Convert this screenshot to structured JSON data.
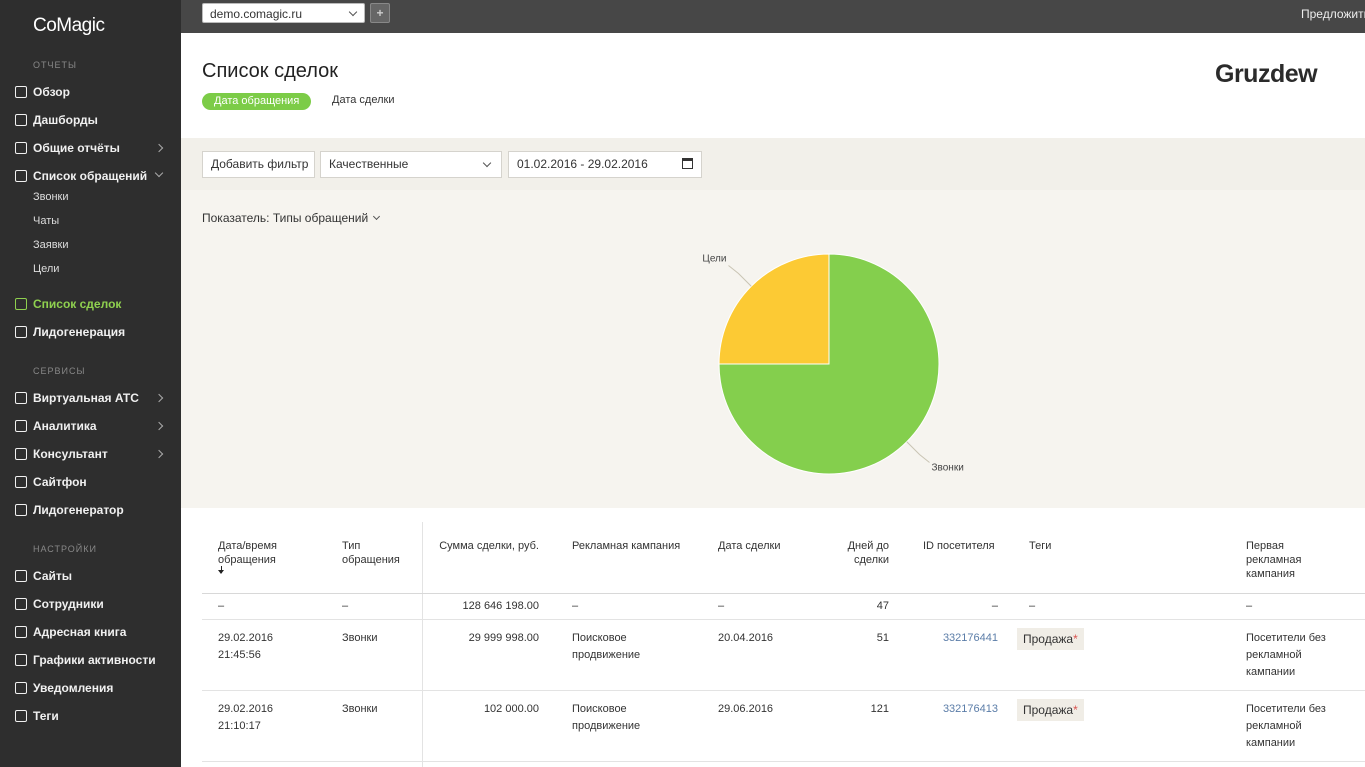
{
  "sidebar": {
    "logo": "CoMagic",
    "sections": [
      {
        "title": "ОТЧЕТЫ",
        "items": [
          {
            "label": "Обзор"
          },
          {
            "label": "Дашборды"
          },
          {
            "label": "Общие отчёты",
            "arrow": "right"
          },
          {
            "label": "Список обращений",
            "arrow": "down",
            "children": [
              "Звонки",
              "Чаты",
              "Заявки",
              "Цели"
            ]
          },
          {
            "label": "Список сделок",
            "active": true
          },
          {
            "label": "Лидогенерация"
          }
        ]
      },
      {
        "title": "СЕРВИСЫ",
        "items": [
          {
            "label": "Виртуальная АТС",
            "arrow": "right"
          },
          {
            "label": "Аналитика",
            "arrow": "right"
          },
          {
            "label": "Консультант",
            "arrow": "right"
          },
          {
            "label": "Сайтфон"
          },
          {
            "label": "Лидогенератор"
          }
        ]
      },
      {
        "title": "НАСТРОЙКИ",
        "items": [
          {
            "label": "Сайты"
          },
          {
            "label": "Сотрудники"
          },
          {
            "label": "Адресная книга"
          },
          {
            "label": "Графики активности"
          },
          {
            "label": "Уведомления"
          },
          {
            "label": "Теги"
          }
        ]
      }
    ]
  },
  "topbar": {
    "site": "demo.comagic.ru",
    "suggest": "Предложить"
  },
  "header": {
    "title": "Список сделок",
    "tabs": [
      "Дата обращения",
      "Дата сделки"
    ],
    "brand": "Gruzdew"
  },
  "filters": {
    "add": "Добавить фильтр",
    "select": "Качественные",
    "dates": "01.02.2016 - 29.02.2016"
  },
  "indicator": {
    "label": "Показатель:",
    "value": "Типы обращений"
  },
  "chart_data": {
    "type": "pie",
    "categories": [
      "Звонки",
      "Цели"
    ],
    "values": [
      75,
      25
    ],
    "colors": [
      "#84cf4d",
      "#fcca34"
    ]
  },
  "table": {
    "columns": [
      "Дата/время обращения",
      "Тип обращения",
      "Сумма сделки, руб.",
      "Рекламная кампания",
      "Дата сделки",
      "Дней до сделки",
      "ID посетителя",
      "Теги",
      "Первая рекламная кампания"
    ],
    "summary": [
      "–",
      "–",
      "128 646 198.00",
      "–",
      "–",
      "47",
      "–",
      "–",
      "–"
    ],
    "rows": [
      {
        "date": "29.02.2016 21:45:56",
        "type": "Звонки",
        "sum": "29 999 998.00",
        "campaign": "Поисковое продвижение",
        "deal_date": "20.04.2016",
        "days": "51",
        "visitor": "332176441",
        "tag": "Продажа",
        "tag_mark": "*",
        "first": "Посетители без рекламной кампании"
      },
      {
        "date": "29.02.2016 21:10:17",
        "type": "Звонки",
        "sum": "102 000.00",
        "campaign": "Поисковое продвижение",
        "deal_date": "29.06.2016",
        "days": "121",
        "visitor": "332176413",
        "tag": "Продажа",
        "tag_mark": "*",
        "first": "Посетители без рекламной кампании"
      }
    ]
  }
}
